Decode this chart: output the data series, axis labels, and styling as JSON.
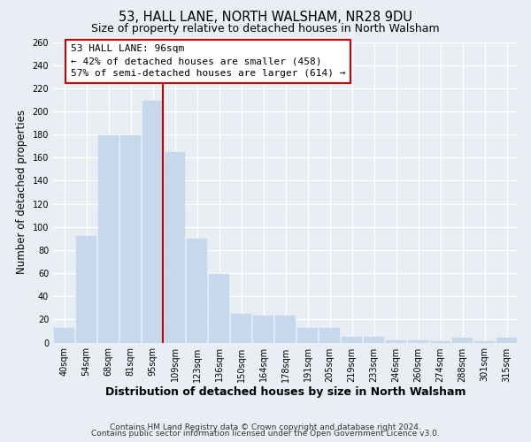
{
  "title": "53, HALL LANE, NORTH WALSHAM, NR28 9DU",
  "subtitle": "Size of property relative to detached houses in North Walsham",
  "xlabel": "Distribution of detached houses by size in North Walsham",
  "ylabel": "Number of detached properties",
  "bar_labels": [
    "40sqm",
    "54sqm",
    "68sqm",
    "81sqm",
    "95sqm",
    "109sqm",
    "123sqm",
    "136sqm",
    "150sqm",
    "164sqm",
    "178sqm",
    "191sqm",
    "205sqm",
    "219sqm",
    "233sqm",
    "246sqm",
    "260sqm",
    "274sqm",
    "288sqm",
    "301sqm",
    "315sqm"
  ],
  "bar_values": [
    13,
    92,
    179,
    179,
    209,
    165,
    90,
    59,
    25,
    23,
    23,
    13,
    13,
    5,
    5,
    2,
    2,
    1,
    4,
    1,
    4
  ],
  "bar_color": "#c5d8ec",
  "bar_edge_color": "#c5d8ec",
  "background_color": "#e8eef4",
  "plot_bg_color": "#e8eef4",
  "grid_color": "#ffffff",
  "vline_x_index": 4,
  "vline_color": "#cc0000",
  "annotation_title": "53 HALL LANE: 96sqm",
  "annotation_line1": "← 42% of detached houses are smaller (458)",
  "annotation_line2": "57% of semi-detached houses are larger (614) →",
  "annotation_box_color": "#ffffff",
  "annotation_box_edge": "#cc0000",
  "ylim": [
    0,
    260
  ],
  "yticks": [
    0,
    20,
    40,
    60,
    80,
    100,
    120,
    140,
    160,
    180,
    200,
    220,
    240,
    260
  ],
  "footer1": "Contains HM Land Registry data © Crown copyright and database right 2024.",
  "footer2": "Contains public sector information licensed under the Open Government Licence v3.0.",
  "title_fontsize": 10.5,
  "subtitle_fontsize": 9,
  "xlabel_fontsize": 9,
  "ylabel_fontsize": 8.5,
  "tick_fontsize": 7,
  "annotation_fontsize": 8,
  "footer_fontsize": 6.5
}
